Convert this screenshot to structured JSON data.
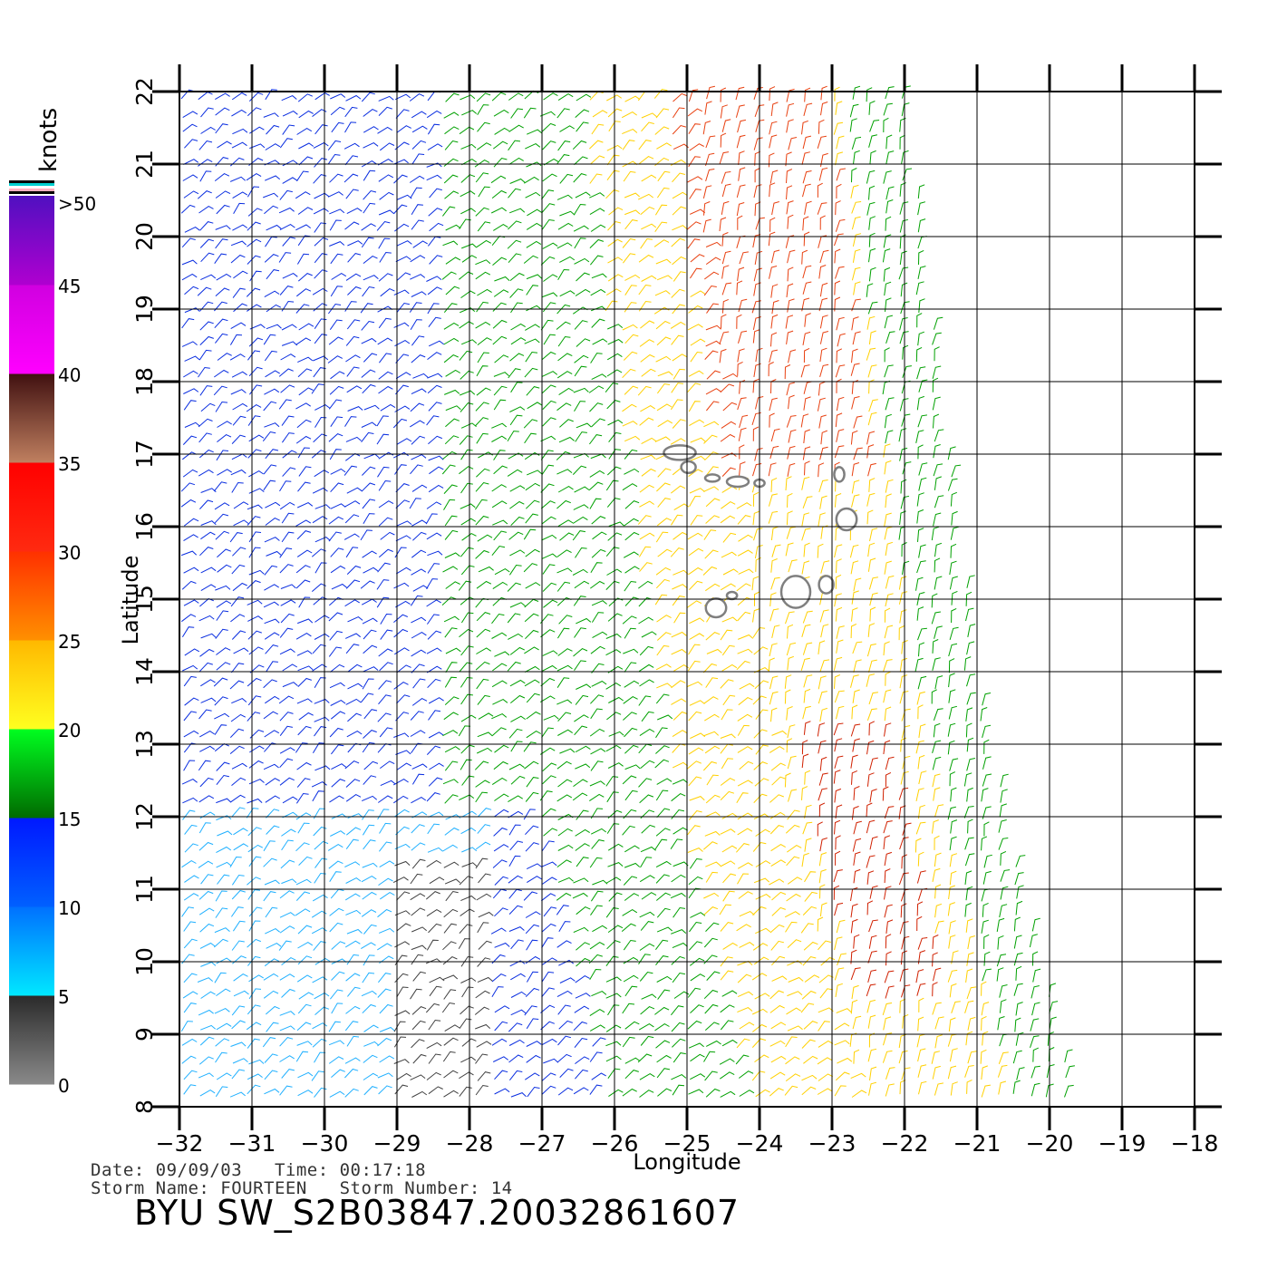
{
  "chart_data": {
    "type": "scatter",
    "subtype": "wind-barb-map",
    "xlabel": "Longitude",
    "ylabel": "Latitude",
    "xlim": [
      -32,
      -18
    ],
    "ylim": [
      8,
      22
    ],
    "xticks": [
      "-32",
      "-31",
      "-30",
      "-29",
      "-28",
      "-27",
      "-26",
      "-25",
      "-24",
      "-23",
      "-22",
      "-21",
      "-20",
      "-19",
      "-18"
    ],
    "yticks": [
      "8",
      "9",
      "10",
      "11",
      "12",
      "13",
      "14",
      "15",
      "16",
      "17",
      "18",
      "19",
      "20",
      "21",
      "22"
    ],
    "grid": true,
    "swath_edge": [
      [
        -22.0,
        22
      ],
      [
        -21.0,
        14.0
      ],
      [
        -20.6,
        12.0
      ],
      [
        -19.6,
        8
      ]
    ],
    "colorbar": {
      "unit": "knots",
      "labels": [
        "0",
        "5",
        "10",
        "15",
        "20",
        "25",
        "30",
        "35",
        "40",
        "45",
        ">50"
      ],
      "bands": [
        {
          "from": 0,
          "to": 5,
          "colors": [
            "#8a8a8a",
            "#2a2a2a"
          ]
        },
        {
          "from": 5,
          "to": 10,
          "colors": [
            "#00e8ff",
            "#0070ff"
          ]
        },
        {
          "from": 10,
          "to": 15,
          "colors": [
            "#0060ff",
            "#0018ff"
          ]
        },
        {
          "from": 15,
          "to": 20,
          "colors": [
            "#006a00",
            "#00ff20"
          ]
        },
        {
          "from": 20,
          "to": 25,
          "colors": [
            "#ffff20",
            "#ffb800"
          ]
        },
        {
          "from": 25,
          "to": 30,
          "colors": [
            "#ff9000",
            "#ff3000"
          ]
        },
        {
          "from": 30,
          "to": 35,
          "colors": [
            "#ff2a10",
            "#ff0000"
          ]
        },
        {
          "from": 35,
          "to": 40,
          "colors": [
            "#c08060",
            "#401010"
          ]
        },
        {
          "from": 40,
          "to": 45,
          "colors": [
            "#ff00ff",
            "#d000e0"
          ]
        },
        {
          "from": 45,
          "to": 50,
          "colors": [
            "#b000d0",
            "#5010c0"
          ]
        }
      ]
    },
    "wind_zones": [
      {
        "region": "north-west",
        "speed_knots": 13,
        "color": "#0a2ee0"
      },
      {
        "region": "central-north",
        "speed_knots": 17,
        "color": "#00a000"
      },
      {
        "region": "east-core-north",
        "speed_knots": 28,
        "color": "#e84010"
      },
      {
        "region": "east-band",
        "speed_knots": 22,
        "color": "#ffd000"
      },
      {
        "region": "south-west",
        "speed_knots": 8,
        "color": "#20b0ff"
      },
      {
        "region": "south-calm",
        "speed_knots": 3,
        "color": "#404040"
      },
      {
        "region": "south-east-core",
        "speed_knots": 31,
        "color": "#d02000"
      }
    ]
  },
  "info": {
    "line1": "Date: 09/09/03   Time: 00:17:18",
    "line2": "Storm Name: FOURTEEN   Storm Number: 14",
    "product_id": "BYU SW_S2B03847.20032861607"
  }
}
